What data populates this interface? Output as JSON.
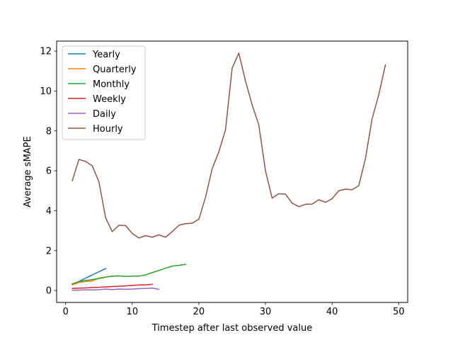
{
  "chart_data": {
    "type": "line",
    "title": "",
    "xlabel": "Timestep after last observed value",
    "ylabel": "Average sMAPE",
    "xlim": [
      -1.35,
      51.35
    ],
    "ylim": [
      -0.6,
      12.5
    ],
    "xticks": [
      0,
      10,
      20,
      30,
      40,
      50
    ],
    "yticks": [
      0,
      2,
      4,
      6,
      8,
      10,
      12
    ],
    "grid": false,
    "legend_position": "upper-left",
    "series": [
      {
        "name": "Yearly",
        "color": "#1f77b4",
        "x": [
          1,
          2,
          3,
          4,
          5,
          6
        ],
        "y": [
          0.3,
          0.45,
          0.62,
          0.78,
          0.94,
          1.1
        ]
      },
      {
        "name": "Quarterly",
        "color": "#ff7f0e",
        "x": [
          1,
          2,
          3,
          4,
          5,
          6,
          7,
          8
        ],
        "y": [
          0.28,
          0.4,
          0.45,
          0.48,
          0.62,
          0.68,
          0.72,
          0.73
        ]
      },
      {
        "name": "Monthly",
        "color": "#2ca02c",
        "x": [
          1,
          2,
          3,
          4,
          5,
          6,
          7,
          8,
          9,
          10,
          11,
          12,
          13,
          14,
          15,
          16,
          17,
          18
        ],
        "y": [
          0.33,
          0.45,
          0.5,
          0.55,
          0.6,
          0.67,
          0.72,
          0.73,
          0.7,
          0.72,
          0.72,
          0.78,
          0.9,
          1.0,
          1.12,
          1.22,
          1.26,
          1.31
        ]
      },
      {
        "name": "Weekly",
        "color": "#d62728",
        "x": [
          1,
          2,
          3,
          4,
          5,
          6,
          7,
          8,
          9,
          10,
          11,
          12,
          13
        ],
        "y": [
          0.1,
          0.12,
          0.13,
          0.15,
          0.16,
          0.18,
          0.2,
          0.21,
          0.23,
          0.25,
          0.28,
          0.28,
          0.31
        ]
      },
      {
        "name": "Daily",
        "color": "#9467bd",
        "x": [
          1,
          2,
          3,
          4,
          5,
          6,
          7,
          8,
          9,
          10,
          11,
          12,
          13,
          14
        ],
        "y": [
          0.01,
          0.02,
          0.03,
          0.03,
          0.04,
          0.07,
          0.05,
          0.07,
          0.06,
          0.07,
          0.09,
          0.1,
          0.12,
          0.06
        ]
      },
      {
        "name": "Hourly",
        "color": "#8c564b",
        "x": [
          1,
          2,
          3,
          4,
          5,
          6,
          7,
          8,
          9,
          10,
          11,
          12,
          13,
          14,
          15,
          16,
          17,
          18,
          19,
          20,
          21,
          22,
          23,
          24,
          25,
          26,
          27,
          28,
          29,
          30,
          31,
          32,
          33,
          34,
          35,
          36,
          37,
          38,
          39,
          40,
          41,
          42,
          43,
          44,
          45,
          46,
          47,
          48
        ],
        "y": [
          5.5,
          6.57,
          6.47,
          6.25,
          5.45,
          3.65,
          2.95,
          3.27,
          3.25,
          2.86,
          2.63,
          2.75,
          2.67,
          2.79,
          2.67,
          2.95,
          3.27,
          3.35,
          3.37,
          3.57,
          4.67,
          6.1,
          6.95,
          8.05,
          11.15,
          11.9,
          10.5,
          9.3,
          8.3,
          6.0,
          4.63,
          4.85,
          4.83,
          4.38,
          4.2,
          4.32,
          4.33,
          4.55,
          4.42,
          4.6,
          5.0,
          5.08,
          5.05,
          5.25,
          6.6,
          8.6,
          9.8,
          11.3
        ]
      }
    ]
  }
}
